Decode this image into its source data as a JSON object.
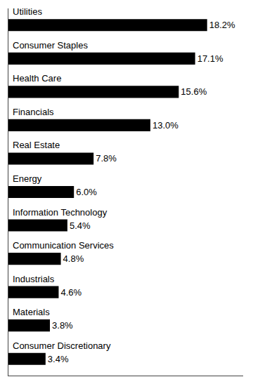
{
  "chart_data": {
    "type": "bar",
    "orientation": "horizontal",
    "categories": [
      "Utilities",
      "Consumer Staples",
      "Health Care",
      "Financials",
      "Real Estate",
      "Energy",
      "Information Technology",
      "Communication Services",
      "Industrials",
      "Materials",
      "Consumer Discretionary"
    ],
    "values": [
      18.2,
      17.1,
      15.6,
      13.0,
      7.8,
      6.0,
      5.4,
      4.8,
      4.6,
      3.8,
      3.4
    ],
    "value_labels": [
      "18.2%",
      "17.1%",
      "15.6%",
      "13.0%",
      "7.8%",
      "6.0%",
      "5.4%",
      "4.8%",
      "4.6%",
      "3.8%",
      "3.4%"
    ],
    "color": "#000000",
    "xlim": [
      0,
      21.5
    ],
    "data_labels": true,
    "tick_labels": false,
    "grid": false
  }
}
